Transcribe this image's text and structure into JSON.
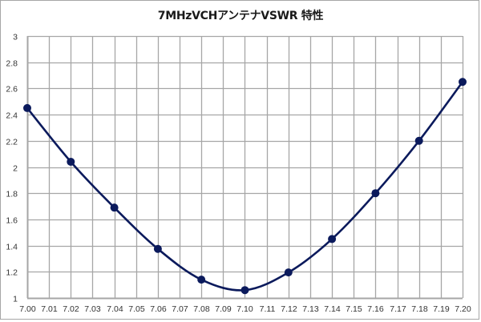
{
  "chart_data": {
    "type": "line",
    "title": "7MHzVCHアンテナVSWR 特性",
    "xlabel": "",
    "ylabel": "",
    "x": [
      7.0,
      7.02,
      7.04,
      7.06,
      7.08,
      7.1,
      7.12,
      7.14,
      7.16,
      7.18,
      7.2
    ],
    "series": [
      {
        "name": "VSWR",
        "values": [
          2.45,
          2.04,
          1.69,
          1.375,
          1.14,
          1.06,
          1.195,
          1.45,
          1.8,
          2.2,
          2.65
        ],
        "color": "#0b1a5c",
        "marker": "circle",
        "smooth": true
      }
    ],
    "xlim": [
      7.0,
      7.2
    ],
    "ylim": [
      1,
      3
    ],
    "x_ticks": [
      "7.00",
      "7.01",
      "7.02",
      "7.03",
      "7.04",
      "7.05",
      "7.06",
      "7.07",
      "7.08",
      "7.09",
      "7.10",
      "7.11",
      "7.12",
      "7.13",
      "7.14",
      "7.15",
      "7.16",
      "7.17",
      "7.18",
      "7.19",
      "7.20"
    ],
    "y_ticks": [
      "1",
      "1.2",
      "1.4",
      "1.6",
      "1.8",
      "2",
      "2.2",
      "2.4",
      "2.6",
      "2.8",
      "3"
    ],
    "grid": true,
    "legend": "none"
  },
  "colors": {
    "grid": "#a6a6a6",
    "axis": "#a6a6a6",
    "line": "#0b1a5c",
    "marker": "#0b1a5c"
  }
}
